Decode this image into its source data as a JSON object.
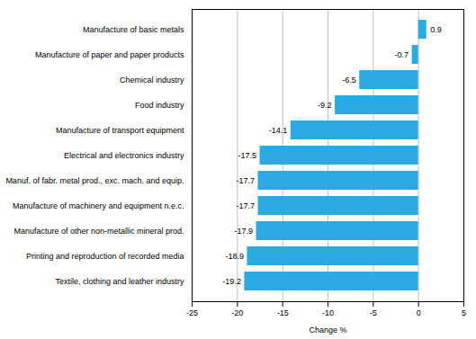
{
  "chart_data": {
    "type": "bar",
    "orientation": "horizontal",
    "categories": [
      "Textile, clothing and leather industry",
      "Printing and reproduction of recorded media",
      "Manufacture of other non-metallic mineral prod.",
      "Manufacture of machinery and equipment n.e.c.",
      "Manuf. of fabr. metal prod., exc. mach. and equip.",
      "Electrical and electronics industry",
      "Manufacture of transport equipment",
      "Food industry",
      "Chemical industry",
      "Manufacture of paper and paper products",
      "Manufacture of basic metals"
    ],
    "values": [
      -19.2,
      -18.9,
      -17.9,
      -17.7,
      -17.7,
      -17.5,
      -14.1,
      -9.2,
      -6.5,
      -0.7,
      0.9
    ],
    "color": "#29ABE2",
    "xlabel": "Change %",
    "xlim": [
      -25,
      5
    ],
    "xticks": [
      -25,
      -20,
      -15,
      -10,
      -5,
      0,
      5
    ],
    "grid": true,
    "data_labels": true
  }
}
